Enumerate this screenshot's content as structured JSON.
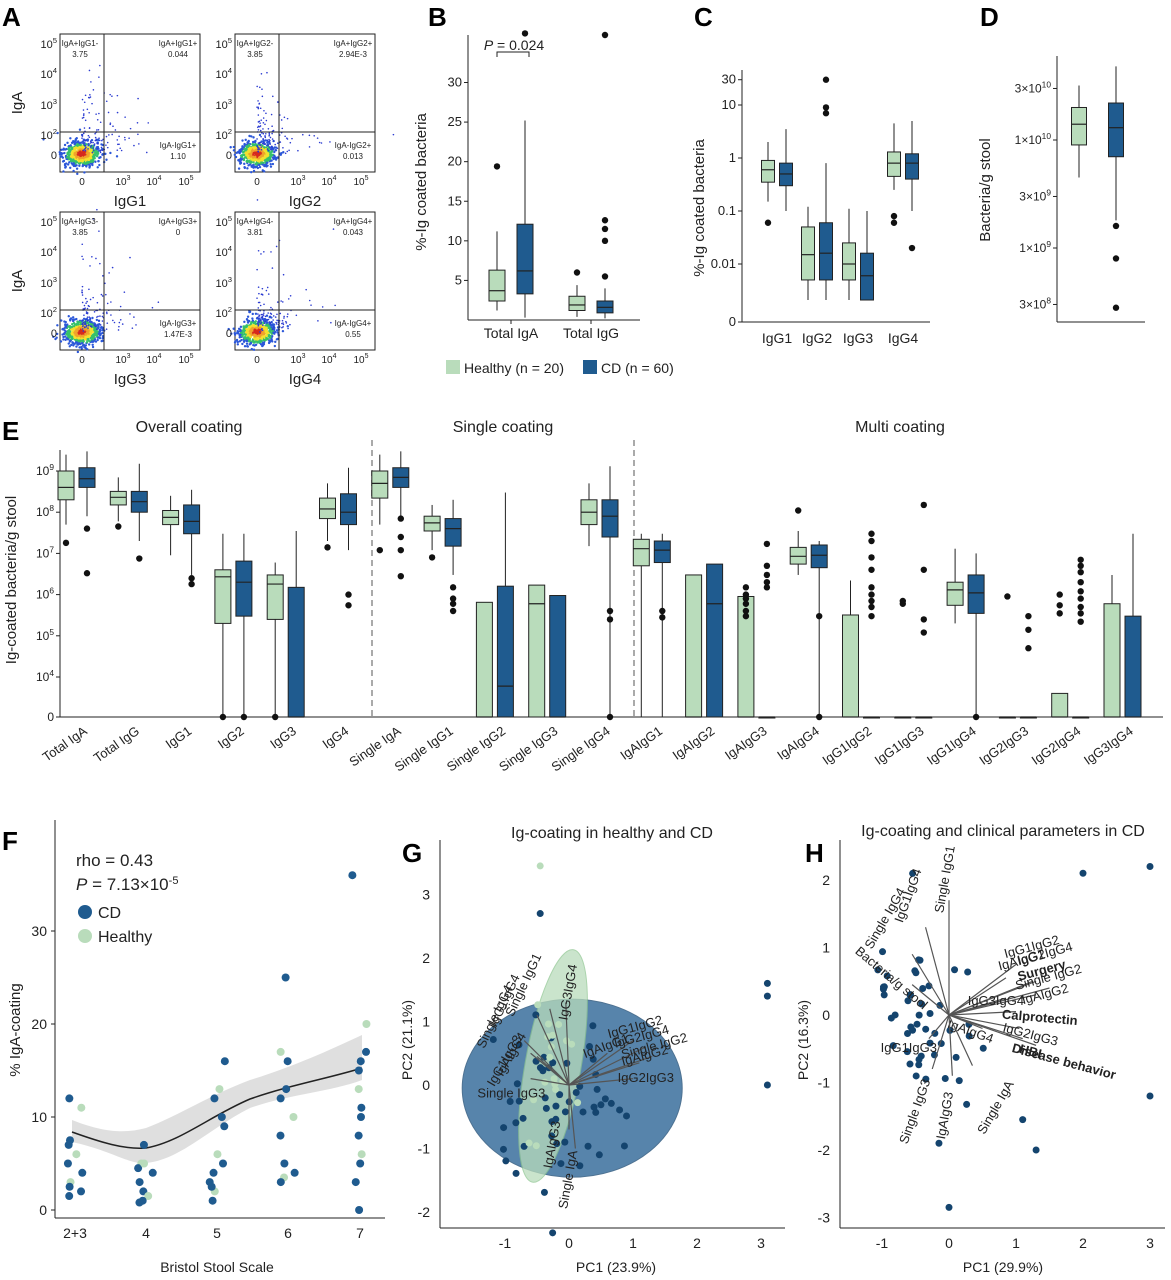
{
  "colors": {
    "healthy": "#b9dcbb",
    "cd": "#1f5b8f",
    "cd_dark": "#0b3a63",
    "grey": "#d9d9d9"
  },
  "chart_data": [
    {
      "panel": "A",
      "type": "scatter",
      "description_free": true,
      "ylabel": "IgA",
      "y_ticks": [
        "10^5",
        "10^4",
        "10^3",
        "10^2",
        "0"
      ],
      "x_ticks": [
        "0",
        "10^3",
        "10^4",
        "10^5"
      ],
      "plots": [
        {
          "xlabel": "IgG1",
          "quadrants": {
            "ul_label": "IgA+IgG1-",
            "ul": "3.75",
            "ur_label": "IgA+IgG1+",
            "ur": "0.044",
            "lr_label": "IgA-IgG1+",
            "lr": "1.10"
          }
        },
        {
          "xlabel": "IgG2",
          "quadrants": {
            "ul_label": "IgA+IgG2-",
            "ul": "3.85",
            "ur_label": "IgA+IgG2+",
            "ur": "2.94E-3",
            "lr_label": "IgA-IgG2+",
            "lr": "0.013"
          }
        },
        {
          "xlabel": "IgG3",
          "quadrants": {
            "ul_label": "IgA+IgG3-",
            "ul": "3.85",
            "ur_label": "IgA+IgG3+",
            "ur": "0",
            "lr_label": "IgA-IgG3+",
            "lr": "1.47E-3"
          }
        },
        {
          "xlabel": "IgG4",
          "quadrants": {
            "ul_label": "IgA+IgG4-",
            "ul": "3.81",
            "ur_label": "IgA+IgG4+",
            "ur": "0.043",
            "lr_label": "IgA-IgG4+",
            "lr": "0.55"
          }
        }
      ]
    },
    {
      "panel": "B",
      "type": "box",
      "ylabel": "%-Ig coated bacteria",
      "yticks": [
        5,
        10,
        15,
        20,
        25,
        30
      ],
      "ylim": [
        0,
        36
      ],
      "categories": [
        "Total IgA",
        "Total IgG"
      ],
      "annotation": "P = 0.024",
      "boxes": [
        {
          "cat": 0,
          "group": "healthy",
          "wlo": 1.2,
          "q1": 2.4,
          "med": 3.7,
          "q3": 6.3,
          "whi": 11.2,
          "out": [
            19.4
          ]
        },
        {
          "cat": 0,
          "group": "cd",
          "wlo": 0.3,
          "q1": 3.3,
          "med": 6.2,
          "q3": 12.1,
          "whi": 25.2,
          "out": [
            36.2
          ]
        },
        {
          "cat": 1,
          "group": "healthy",
          "wlo": 0.4,
          "q1": 1.2,
          "med": 1.9,
          "q3": 3.0,
          "whi": 4.4,
          "out": [
            6.0
          ]
        },
        {
          "cat": 1,
          "group": "cd",
          "wlo": 0.2,
          "q1": 0.9,
          "med": 1.6,
          "q3": 2.4,
          "whi": 4.0,
          "out": [
            5.5,
            10.0,
            11.5,
            12.6,
            36.0
          ]
        }
      ],
      "legend": [
        {
          "label": "Healthy (n = 20)"
        },
        {
          "label": "CD (n = 60)"
        }
      ]
    },
    {
      "panel": "C",
      "type": "box",
      "ylabel": "%-Ig coated bacteria",
      "scale": "log",
      "yticks": [
        "0",
        "0.01",
        "0.1",
        "1",
        "10",
        "30"
      ],
      "categories": [
        "IgG1",
        "IgG2",
        "IgG3",
        "IgG4"
      ],
      "boxes": [
        {
          "cat": 0,
          "group": "healthy",
          "wlo": 0.15,
          "q1": 0.35,
          "med": 0.6,
          "q3": 0.9,
          "whi": 2.0,
          "out": [
            0.06
          ]
        },
        {
          "cat": 0,
          "group": "cd",
          "wlo": 0.1,
          "q1": 0.3,
          "med": 0.5,
          "q3": 0.8,
          "whi": 3.5,
          "out": []
        },
        {
          "cat": 1,
          "group": "healthy",
          "wlo": 0.0025,
          "q1": 0.005,
          "med": 0.015,
          "q3": 0.05,
          "whi": 0.12,
          "out": []
        },
        {
          "cat": 1,
          "group": "cd",
          "wlo": 0.0025,
          "q1": 0.005,
          "med": 0.016,
          "q3": 0.06,
          "whi": 0.8,
          "out": [
            7.0,
            9.0,
            30.0
          ]
        },
        {
          "cat": 2,
          "group": "healthy",
          "wlo": 0.0025,
          "q1": 0.005,
          "med": 0.01,
          "q3": 0.025,
          "whi": 0.11,
          "out": []
        },
        {
          "cat": 2,
          "group": "cd",
          "wlo": 0.0025,
          "q1": 0.0025,
          "med": 0.006,
          "q3": 0.016,
          "whi": 0.1,
          "out": []
        },
        {
          "cat": 3,
          "group": "healthy",
          "wlo": 0.25,
          "q1": 0.45,
          "med": 0.8,
          "q3": 1.3,
          "whi": 4.5,
          "out": [
            0.06,
            0.08
          ]
        },
        {
          "cat": 3,
          "group": "cd",
          "wlo": 0.1,
          "q1": 0.4,
          "med": 0.8,
          "q3": 1.2,
          "whi": 5.0,
          "out": [
            0.02
          ]
        }
      ]
    },
    {
      "panel": "D",
      "type": "box",
      "ylabel": "Bacteria/g stool",
      "scale": "log",
      "yticks": [
        "3×10^10",
        "1×10^10",
        "3×10^9",
        "1×10^9",
        "3×10^8"
      ],
      "boxes": [
        {
          "group": "healthy",
          "wlo": 4500000000.0,
          "q1": 9000000000.0,
          "med": 14000000000.0,
          "q3": 20000000000.0,
          "whi": 32000000000.0,
          "out": []
        },
        {
          "group": "cd",
          "wlo": 1800000000.0,
          "q1": 7000000000.0,
          "med": 13000000000.0,
          "q3": 22000000000.0,
          "whi": 48000000000.0,
          "out": [
            1600000000.0,
            800000000.0,
            280000000.0
          ]
        }
      ]
    },
    {
      "panel": "E",
      "type": "box",
      "ylabel": "Ig-coated bacteria/g stool",
      "scale": "log",
      "yticks": [
        "0",
        "10^4",
        "10^5",
        "10^6",
        "10^7",
        "10^8",
        "10^9"
      ],
      "sections": [
        "Overall coating",
        "Single coating",
        "Multi coating"
      ],
      "categories": [
        "Total IgA",
        "Total IgG",
        "IgG1",
        "IgG2",
        "IgG3",
        "IgG4",
        "Single IgA",
        "Single IgG1",
        "Single IgG2",
        "Single IgG3",
        "Single IgG4",
        "IgAIgG1",
        "IgAIgG2",
        "IgAIgG3",
        "IgAIgG4",
        "IgG1IgG2",
        "IgG1IgG3",
        "IgG1IgG4",
        "IgG2IgG3",
        "IgG2IgG4",
        "IgG3IgG4"
      ]
    },
    {
      "panel": "F",
      "type": "scatter",
      "xlabel": "Bristol Stool Scale",
      "ylabel": "% IgA-coating",
      "x_ticks": [
        "2+3",
        "4",
        "5",
        "6",
        "7"
      ],
      "y_ticks": [
        0,
        10,
        20,
        30
      ],
      "stats_rho": "rho = 0.43",
      "stats_p": "P = 7.13×10^-5",
      "legend": [
        "CD",
        "Healthy"
      ]
    },
    {
      "panel": "G",
      "type": "scatter",
      "title": "Ig-coating in healthy and CD",
      "xlabel": "PC1 (23.9%)",
      "ylabel": "PC2 (21.1%)",
      "x_ticks": [
        -1,
        0,
        1,
        2,
        3
      ],
      "y_ticks": [
        -2,
        -1,
        0,
        1,
        2,
        3
      ],
      "vectors": [
        "Single IgG1",
        "IgG1IgG4",
        "Single IgG4",
        "IgG3IgG4",
        "IgAIgG1",
        "IgG1IgG2",
        "IgG2IgG4",
        "Single IgG2",
        "IgAIgG2",
        "IgG2IgG3",
        "IgAIgG4",
        "IgG1IgG3",
        "Single IgG3",
        "IgAIgG3",
        "Single IgA"
      ]
    },
    {
      "panel": "H",
      "type": "scatter",
      "title": "Ig-coating and clinical parameters in CD",
      "xlabel": "PC1 (29.9%)",
      "ylabel": "PC2 (16.3%)",
      "x_ticks": [
        -1,
        0,
        1,
        2,
        3
      ],
      "y_ticks": [
        -3,
        -2,
        -1,
        0,
        1,
        2
      ],
      "vectors": [
        "Single IgG1",
        "IgG1IgG4",
        "Single IgG4",
        "Bacteria/g stool",
        "IgG1IgG2",
        "IgAIgG1",
        "Surgery",
        "IgG2IgG4",
        "Single IgG2",
        "IgAIgG2",
        "IgG3IgG4",
        "Calprotectin",
        "IgAIgG4",
        "IgG2IgG3",
        "HBI",
        "Disease behavior",
        "IgG1IgG3",
        "Single IgG3",
        "IgAIgG3",
        "Single IgA"
      ]
    }
  ],
  "labels": {
    "A": "A",
    "B": "B",
    "C": "C",
    "D": "D",
    "E": "E",
    "F": "F",
    "G": "G",
    "H": "H"
  }
}
